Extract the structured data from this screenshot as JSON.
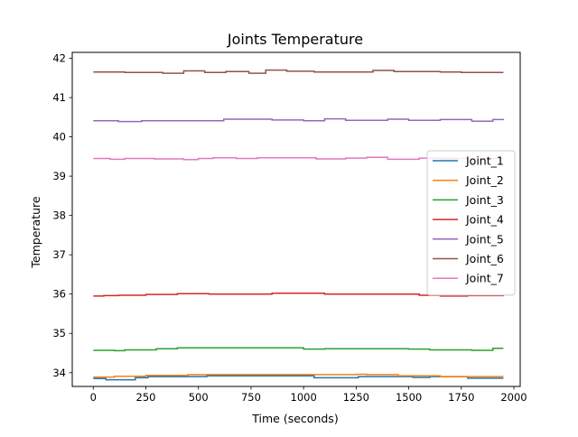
{
  "chart_data": {
    "type": "line",
    "title": "Joints Temperature",
    "xlabel": "Time (seconds)",
    "ylabel": "Temperature",
    "xlim": [
      -100,
      2030
    ],
    "ylim": [
      33.65,
      42.15
    ],
    "xticks": [
      0,
      250,
      500,
      750,
      1000,
      1250,
      1500,
      1750,
      2000
    ],
    "yticks": [
      34,
      35,
      36,
      37,
      38,
      39,
      40,
      41,
      42
    ],
    "grid": false,
    "legend_position": "center-right",
    "series": [
      {
        "name": "Joint_1",
        "color": "#1f77b4",
        "x": [
          0,
          60,
          200,
          260,
          540,
          1050,
          1260,
          1520,
          1600,
          1780,
          1950
        ],
        "y": [
          33.85,
          33.82,
          33.87,
          33.9,
          33.92,
          33.87,
          33.9,
          33.88,
          33.9,
          33.86,
          33.86
        ]
      },
      {
        "name": "Joint_2",
        "color": "#ff7f0e",
        "x": [
          0,
          100,
          250,
          450,
          1250,
          1300,
          1450,
          1650,
          1950
        ],
        "y": [
          33.89,
          33.91,
          33.93,
          33.95,
          33.96,
          33.95,
          33.92,
          33.9,
          33.9
        ]
      },
      {
        "name": "Joint_3",
        "color": "#2ca02c",
        "x": [
          0,
          100,
          150,
          300,
          400,
          750,
          1000,
          1100,
          1500,
          1600,
          1800,
          1900,
          1950
        ],
        "y": [
          34.57,
          34.56,
          34.58,
          34.61,
          34.63,
          34.63,
          34.6,
          34.61,
          34.6,
          34.58,
          34.57,
          34.62,
          34.62
        ]
      },
      {
        "name": "Joint_4",
        "color": "#d62728",
        "x": [
          0,
          50,
          120,
          250,
          400,
          550,
          850,
          1100,
          1450,
          1550,
          1650,
          1780,
          1950
        ],
        "y": [
          35.95,
          35.96,
          35.97,
          35.99,
          36.01,
          36.0,
          36.02,
          36.0,
          36.0,
          35.97,
          35.95,
          35.96,
          35.95
        ]
      },
      {
        "name": "Joint_5",
        "color": "#9467bd",
        "x": [
          0,
          120,
          230,
          400,
          620,
          850,
          1000,
          1100,
          1200,
          1400,
          1500,
          1650,
          1800,
          1900,
          1950
        ],
        "y": [
          40.41,
          40.39,
          40.41,
          40.41,
          40.45,
          40.43,
          40.41,
          40.46,
          40.42,
          40.45,
          40.42,
          40.44,
          40.4,
          40.44,
          40.43
        ]
      },
      {
        "name": "Joint_6",
        "color": "#8c564b",
        "x": [
          0,
          150,
          330,
          430,
          530,
          630,
          740,
          820,
          920,
          1050,
          1330,
          1430,
          1650,
          1750,
          1950
        ],
        "y": [
          41.65,
          41.64,
          41.62,
          41.68,
          41.64,
          41.66,
          41.62,
          41.7,
          41.67,
          41.65,
          41.69,
          41.66,
          41.65,
          41.64,
          41.64
        ]
      },
      {
        "name": "Joint_7",
        "color": "#e377c2",
        "x": [
          0,
          80,
          150,
          290,
          430,
          500,
          570,
          680,
          780,
          1060,
          1200,
          1300,
          1400,
          1550,
          1650,
          1950
        ],
        "y": [
          39.45,
          39.43,
          39.45,
          39.44,
          39.42,
          39.45,
          39.47,
          39.45,
          39.47,
          39.44,
          39.46,
          39.48,
          39.43,
          39.46,
          39.45,
          39.45
        ]
      }
    ]
  }
}
